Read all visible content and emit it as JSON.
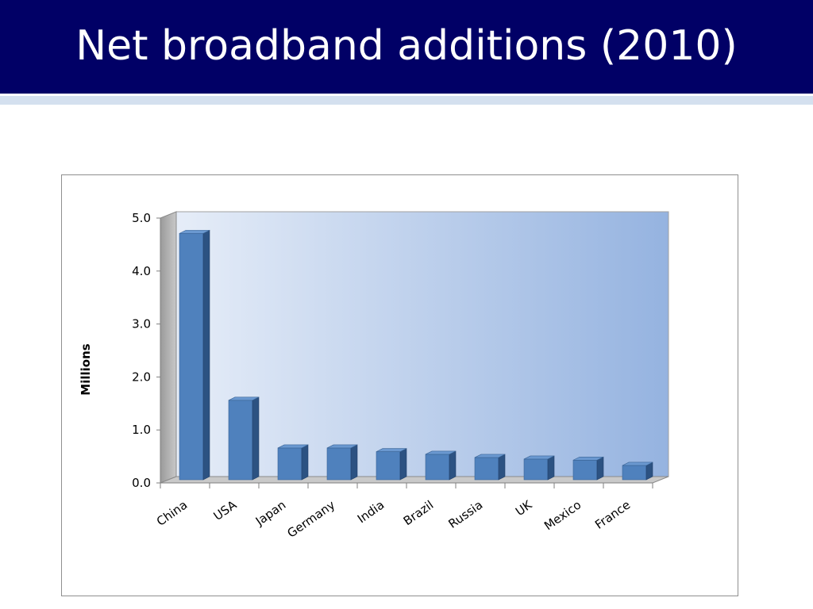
{
  "slide": {
    "title": "Net broadband additions (2010)"
  },
  "colors": {
    "title_bar": "#010066",
    "title_text": "#ffffff",
    "stripe": "#d4e0ef",
    "bar_front": "#4f81bd",
    "bar_side": "#2c5282",
    "bar_top": "#6a98d0",
    "plot_back_start": "#e6edf8",
    "plot_back_end": "#95b3e0"
  },
  "chart_data": {
    "type": "bar",
    "title": "",
    "xlabel": "",
    "ylabel": "Millions",
    "ylim": [
      0,
      5
    ],
    "yticks": [
      "0.0",
      "1.0",
      "2.0",
      "3.0",
      "4.0",
      "5.0"
    ],
    "categories": [
      "China",
      "USA",
      "Japan",
      "Germany",
      "India",
      "Brazil",
      "Russia",
      "UK",
      "Mexico",
      "France"
    ],
    "values": [
      4.65,
      1.5,
      0.6,
      0.6,
      0.53,
      0.48,
      0.42,
      0.39,
      0.37,
      0.27
    ],
    "grid": false,
    "legend": "none",
    "style": "3d-column"
  }
}
